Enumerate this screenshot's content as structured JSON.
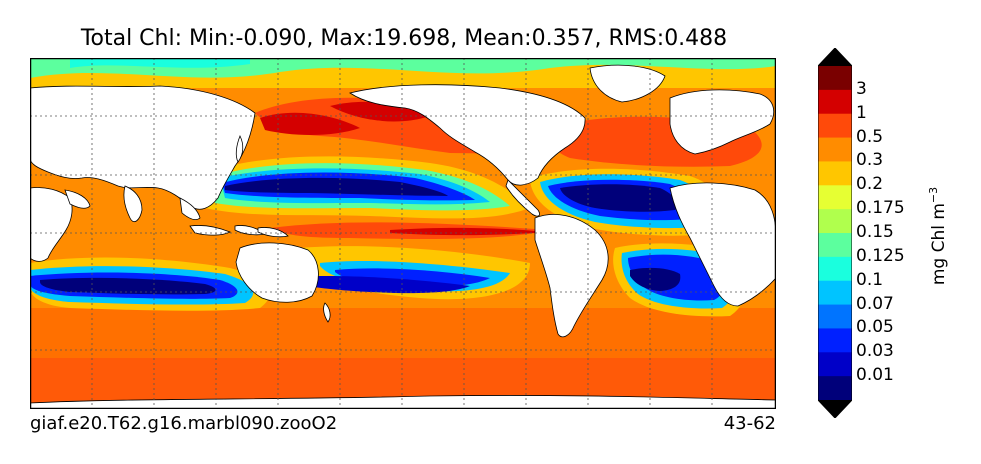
{
  "title": "Total Chl: Min:-0.090, Max:19.698, Mean:0.357, RMS:0.488",
  "footer": {
    "case_name": "giaf.e20.T62.g16.marbl090.zooO2",
    "years": "43-62"
  },
  "colorbar": {
    "units": "mg Chl m",
    "units_exponent": "−3",
    "labels": [
      "3",
      "1",
      "0.5",
      "0.3",
      "0.2",
      "0.175",
      "0.15",
      "0.125",
      "0.1",
      "0.07",
      "0.05",
      "0.03",
      "0.01"
    ],
    "colors_top_to_bottom": [
      "#7a0000",
      "#d40000",
      "#ff4a0a",
      "#ff8c00",
      "#ffc600",
      "#e6ff33",
      "#b0ff4d",
      "#5cff9e",
      "#1affde",
      "#00c4ff",
      "#0074ff",
      "#0020ff",
      "#0000c8",
      "#00007a"
    ]
  },
  "colors": {
    "land": "#ffffff",
    "gridline": "#555555"
  }
}
